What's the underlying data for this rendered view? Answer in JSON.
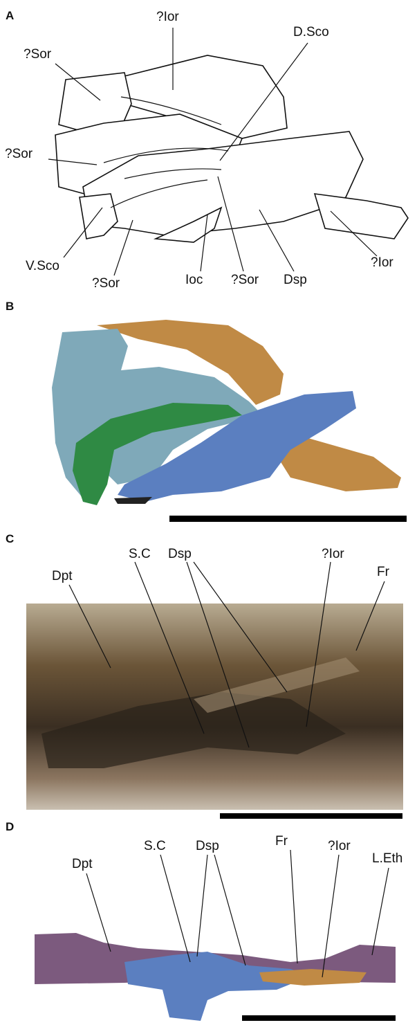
{
  "panels": [
    {
      "letter": "A",
      "labels": [
        "?Ior",
        "D.Sco",
        "?Sor",
        "?Sor",
        "V.Sco",
        "?Sor",
        "Ioc",
        "?Sor",
        "Dsp",
        "?Ior"
      ]
    },
    {
      "letter": "B"
    },
    {
      "letter": "C",
      "labels": [
        "Dpt",
        "S.C",
        "Dsp",
        "?Ior",
        "Fr"
      ]
    },
    {
      "letter": "D",
      "labels": [
        "Dpt",
        "S.C",
        "Dsp",
        "Fr",
        "?Ior",
        "L.Eth"
      ]
    }
  ]
}
